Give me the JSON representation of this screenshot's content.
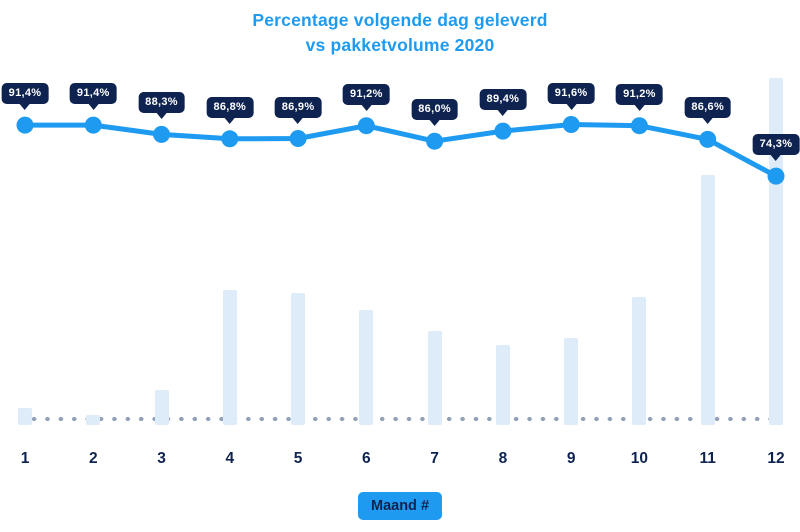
{
  "title": {
    "line1": "Percentage volgende dag geleverd",
    "line2": "vs pakketvolume 2020"
  },
  "x_axis": {
    "badge_label": "Maand #"
  },
  "colors": {
    "accent_blue": "#1E9BF0",
    "navy": "#0F2350",
    "bar_fill": "#DEEBF9",
    "dot_gray": "#93A1B8",
    "tooltip_text": "#FFFFFF",
    "background": "#FFFFFF"
  },
  "chart_data": {
    "type": "line+bar",
    "title": "Percentage volgende dag geleverd vs pakketvolume 2020",
    "xlabel": "Maand #",
    "categories": [
      "1",
      "2",
      "3",
      "4",
      "5",
      "6",
      "7",
      "8",
      "9",
      "10",
      "11",
      "12"
    ],
    "series": [
      {
        "name": "Percentage volgende dag geleverd",
        "type": "line",
        "unit": "%",
        "values": [
          91.4,
          91.4,
          88.3,
          86.8,
          86.9,
          91.2,
          86.0,
          89.4,
          91.6,
          91.2,
          86.6,
          74.3
        ],
        "labels": [
          "91,4%",
          "91,4%",
          "88,3%",
          "86,8%",
          "86,9%",
          "91,2%",
          "86,0%",
          "89,4%",
          "91,6%",
          "91,2%",
          "86,6%",
          "74,3%"
        ]
      },
      {
        "name": "Pakketvolume 2020",
        "type": "bar",
        "axis": "hidden",
        "values_relative_to_max": [
          0.05,
          0.03,
          0.1,
          0.39,
          0.38,
          0.33,
          0.27,
          0.23,
          0.25,
          0.37,
          0.72,
          1.0
        ]
      }
    ],
    "legend": "none",
    "grid": "none",
    "baseline": "dotted"
  }
}
